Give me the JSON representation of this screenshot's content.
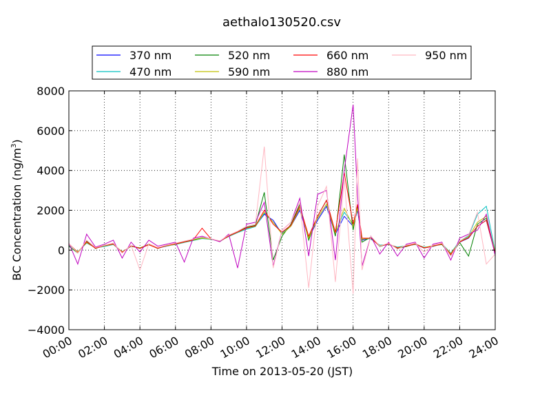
{
  "chart_data": {
    "type": "line",
    "title": "aethalo130520.csv",
    "xlabel": "Time on 2013-05-20 (JST)",
    "ylabel_main": "BC Concentration (ng/m",
    "ylabel_sup": "3",
    "ylabel_close": ")",
    "xlim": [
      "00:00",
      "24:00"
    ],
    "ylim": [
      -4000,
      8000
    ],
    "x_ticks": [
      "00:00",
      "02:00",
      "04:00",
      "06:00",
      "08:00",
      "10:00",
      "12:00",
      "14:00",
      "16:00",
      "18:00",
      "20:00",
      "22:00",
      "24:00"
    ],
    "y_ticks": [
      "8000",
      "6000",
      "4000",
      "2000",
      "0",
      "−2000",
      "−4000"
    ],
    "y_tick_values": [
      8000,
      6000,
      4000,
      2000,
      0,
      -2000,
      -4000
    ],
    "grid": true,
    "legend_position": "top-center, outside plot",
    "series": [
      {
        "name": "370 nm",
        "color": "#0000ff"
      },
      {
        "name": "470 nm",
        "color": "#00bfbf"
      },
      {
        "name": "520 nm",
        "color": "#008000"
      },
      {
        "name": "590 nm",
        "color": "#bfbf00"
      },
      {
        "name": "660 nm",
        "color": "#ff0000"
      },
      {
        "name": "880 nm",
        "color": "#bf00bf"
      },
      {
        "name": "950 nm",
        "color": "#ffb6c1"
      }
    ],
    "x": [
      "00:00",
      "00:30",
      "01:00",
      "01:30",
      "02:00",
      "02:30",
      "03:00",
      "03:30",
      "04:00",
      "04:30",
      "05:00",
      "05:30",
      "06:00",
      "06:30",
      "07:00",
      "07:30",
      "08:00",
      "08:30",
      "09:00",
      "09:30",
      "10:00",
      "10:30",
      "11:00",
      "11:30",
      "12:00",
      "12:30",
      "13:00",
      "13:30",
      "14:00",
      "14:30",
      "15:00",
      "15:30",
      "16:00",
      "16:15",
      "16:30",
      "17:00",
      "17:30",
      "18:00",
      "18:30",
      "19:00",
      "19:30",
      "20:00",
      "20:30",
      "21:00",
      "21:30",
      "22:00",
      "22:30",
      "23:00",
      "23:30",
      "24:00"
    ],
    "values": {
      "370 nm": [
        300,
        -100,
        400,
        100,
        200,
        300,
        -100,
        200,
        100,
        300,
        100,
        200,
        300,
        400,
        500,
        600,
        550,
        450,
        700,
        900,
        1100,
        1200,
        1800,
        1500,
        800,
        1200,
        2000,
        600,
        1500,
        2200,
        800,
        1700,
        1200,
        2000,
        500,
        600,
        200,
        300,
        100,
        200,
        300,
        100,
        200,
        300,
        -200,
        400,
        600,
        1200,
        1500,
        -200
      ],
      "470 nm": [
        250,
        -80,
        350,
        120,
        180,
        280,
        -80,
        180,
        120,
        260,
        120,
        220,
        280,
        380,
        480,
        580,
        540,
        460,
        680,
        880,
        1050,
        1180,
        1850,
        1400,
        850,
        1250,
        2100,
        650,
        1600,
        2300,
        900,
        1900,
        1300,
        2100,
        600,
        550,
        250,
        280,
        150,
        220,
        280,
        150,
        180,
        320,
        -150,
        450,
        700,
        1800,
        2200,
        -100
      ],
      "520 nm": [
        200,
        -150,
        450,
        80,
        250,
        320,
        -120,
        220,
        80,
        280,
        80,
        230,
        320,
        420,
        520,
        620,
        560,
        430,
        720,
        920,
        1150,
        1250,
        2900,
        -500,
        700,
        1300,
        2300,
        500,
        1700,
        2500,
        700,
        4800,
        1000,
        2200,
        400,
        650,
        180,
        320,
        80,
        180,
        320,
        120,
        220,
        280,
        -250,
        380,
        -300,
        1300,
        1600,
        -150
      ],
      "590 nm": [
        280,
        -90,
        380,
        110,
        210,
        300,
        -90,
        200,
        110,
        290,
        110,
        210,
        300,
        400,
        500,
        600,
        550,
        450,
        700,
        900,
        1100,
        1200,
        1900,
        1400,
        800,
        1200,
        2100,
        600,
        1600,
        2300,
        850,
        2100,
        1200,
        2100,
        550,
        600,
        220,
        300,
        120,
        210,
        300,
        130,
        210,
        300,
        -180,
        420,
        650,
        1400,
        1700,
        -120
      ],
      "660 nm": [
        320,
        -120,
        420,
        90,
        230,
        310,
        -110,
        210,
        90,
        270,
        90,
        240,
        310,
        410,
        510,
        1100,
        560,
        440,
        710,
        910,
        1120,
        1220,
        2000,
        1300,
        900,
        1250,
        2200,
        700,
        1700,
        2500,
        900,
        3900,
        1300,
        2300,
        600,
        600,
        200,
        310,
        110,
        200,
        310,
        110,
        200,
        310,
        -220,
        410,
        620,
        1200,
        1500,
        -180
      ],
      "880 nm": [
        350,
        -700,
        800,
        150,
        300,
        500,
        -400,
        400,
        -100,
        500,
        200,
        300,
        400,
        -600,
        600,
        700,
        560,
        420,
        800,
        -900,
        1300,
        1400,
        2400,
        -800,
        1000,
        1400,
        2600,
        -300,
        2800,
        3000,
        -500,
        4000,
        7300,
        2800,
        -800,
        700,
        -200,
        400,
        -300,
        300,
        400,
        -400,
        300,
        400,
        -500,
        600,
        800,
        1000,
        1800,
        -300
      ],
      "950 nm": [
        320,
        -150,
        500,
        130,
        240,
        350,
        -150,
        250,
        -1000,
        320,
        130,
        250,
        350,
        450,
        550,
        650,
        570,
        460,
        750,
        950,
        1200,
        1300,
        5200,
        -900,
        1000,
        1400,
        2400,
        -1900,
        2200,
        3200,
        -1600,
        3600,
        -2200,
        4600,
        -1000,
        700,
        200,
        350,
        50,
        250,
        350,
        -100,
        250,
        350,
        -300,
        450,
        750,
        1900,
        -700,
        -200
      ]
    }
  }
}
